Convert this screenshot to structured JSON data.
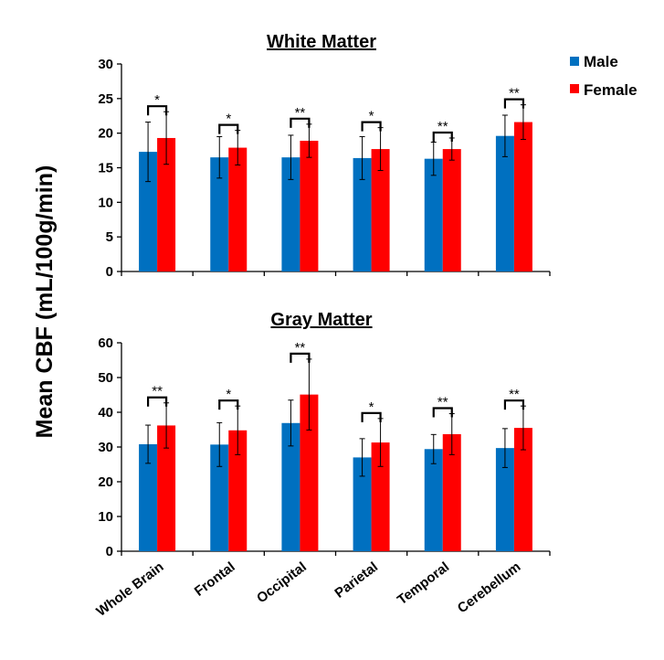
{
  "figure": {
    "ylabel": "Mean CBF (mL/100g/min)",
    "legend": [
      {
        "name": "Male",
        "color": "#0070C0"
      },
      {
        "name": "Female",
        "color": "#FF0000"
      }
    ]
  },
  "chart_data": [
    {
      "type": "bar",
      "title": "White Matter",
      "categories": [
        "Whole Brain",
        "Frontal",
        "Occipital",
        "Parietal",
        "Temporal",
        "Cerebellum"
      ],
      "ylim": [
        0,
        30
      ],
      "yticks": [
        0,
        5,
        10,
        15,
        20,
        25,
        30
      ],
      "series": [
        {
          "name": "Male",
          "color": "#0070C0",
          "values": [
            17.3,
            16.5,
            16.5,
            16.4,
            16.3,
            19.6
          ],
          "errors": [
            4.3,
            3.0,
            3.2,
            3.1,
            2.4,
            3.0
          ]
        },
        {
          "name": "Female",
          "color": "#FF0000",
          "values": [
            19.3,
            17.9,
            18.9,
            17.7,
            17.7,
            21.6
          ],
          "errors": [
            3.8,
            2.5,
            2.4,
            3.1,
            1.6,
            2.5
          ]
        }
      ],
      "significance": [
        "*",
        "*",
        "**",
        "*",
        "**",
        "**"
      ]
    },
    {
      "type": "bar",
      "title": "Gray Matter",
      "categories": [
        "Whole Brain",
        "Frontal",
        "Occipital",
        "Parietal",
        "Temporal",
        "Cerebellum"
      ],
      "ylim": [
        0,
        60
      ],
      "yticks": [
        0,
        10,
        20,
        30,
        40,
        50,
        60
      ],
      "series": [
        {
          "name": "Male",
          "color": "#0070C0",
          "values": [
            30.8,
            30.7,
            36.9,
            27.0,
            29.4,
            29.7
          ],
          "errors": [
            5.5,
            6.3,
            6.6,
            5.4,
            4.2,
            5.6
          ]
        },
        {
          "name": "Female",
          "color": "#FF0000",
          "values": [
            36.2,
            34.8,
            45.1,
            31.3,
            33.7,
            35.5
          ],
          "errors": [
            6.5,
            7.0,
            10.2,
            6.9,
            5.9,
            6.3
          ]
        }
      ],
      "significance": [
        "**",
        "*",
        "**",
        "*",
        "**",
        "**"
      ]
    }
  ]
}
